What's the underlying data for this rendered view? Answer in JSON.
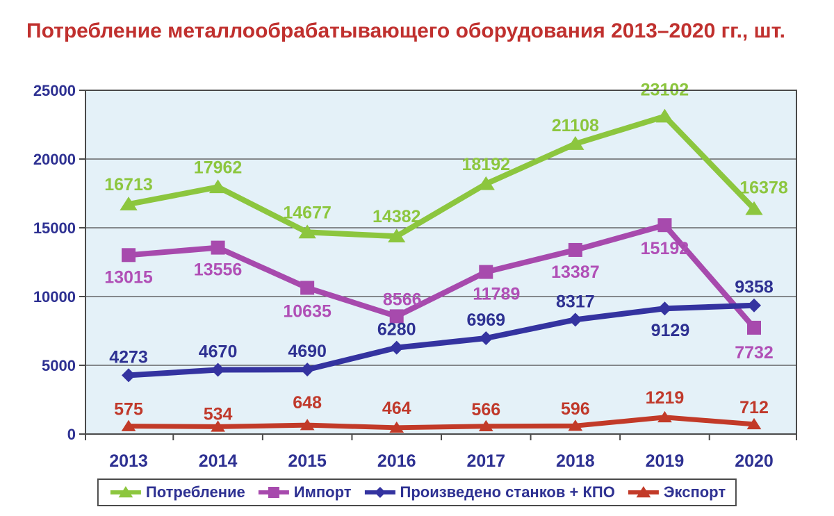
{
  "title": "Потребление металлообрабатывающего оборудования 2013–2020 гг., шт.",
  "colors": {
    "title_text": "#C0302E",
    "axis_text": "#2E3192",
    "plot_background": "#E4F1F8",
    "gridline": "#4A4A4A",
    "plot_border": "#4A4A4A",
    "page_background": "#FFFFFF",
    "legend_text": "#2E3192"
  },
  "chart_data": {
    "type": "line",
    "title": "Потребление металлообрабатывающего оборудования 2013–2020 гг., шт.",
    "categories": [
      "2013",
      "2014",
      "2015",
      "2016",
      "2017",
      "2018",
      "2019",
      "2020"
    ],
    "series": [
      {
        "name": "Потребление",
        "marker": "triangle",
        "color": "#8CC63E",
        "label_color": "#8CC63E",
        "values": [
          16713,
          17962,
          14677,
          14382,
          18192,
          21108,
          23102,
          16378
        ]
      },
      {
        "name": "Импорт",
        "marker": "square",
        "color": "#A74AAD",
        "label_color": "#B04FB6",
        "values": [
          13015,
          13556,
          10635,
          8566,
          11789,
          13387,
          15192,
          7732
        ]
      },
      {
        "name": "Произведено станков + КПО",
        "marker": "diamond",
        "color": "#3433A0",
        "label_color": "#2E3192",
        "values": [
          4273,
          4670,
          4690,
          6280,
          6969,
          8317,
          9129,
          9358
        ]
      },
      {
        "name": "Экспорт",
        "marker": "triangle",
        "color": "#C23A28",
        "label_color": "#C0392B",
        "values": [
          575,
          534,
          648,
          464,
          566,
          596,
          1219,
          712
        ]
      }
    ],
    "ylim": [
      0,
      25000
    ],
    "ytick_step": 5000,
    "ytick_labels": [
      "0",
      "5000",
      "10000",
      "15000",
      "20000",
      "25000"
    ],
    "grid": "horizontal",
    "legend_position": "bottom",
    "xlabel": "",
    "ylabel": ""
  }
}
